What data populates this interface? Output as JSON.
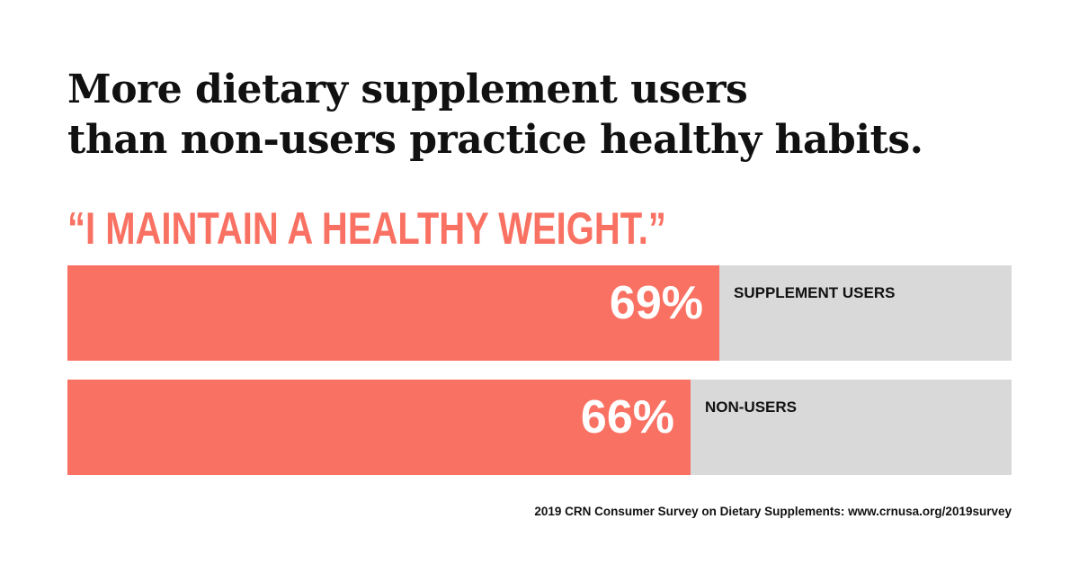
{
  "headline": {
    "line1": "More dietary supplement users",
    "line2": "than non-users practice healthy habits."
  },
  "quote": "“I MAINTAIN A HEALTHY WEIGHT.”",
  "chart_data": {
    "type": "bar",
    "orientation": "horizontal",
    "title": "“I MAINTAIN A HEALTHY WEIGHT.”",
    "categories": [
      "SUPPLEMENT USERS",
      "NON-USERS"
    ],
    "values": [
      69,
      66
    ],
    "value_labels": [
      "69%",
      "66%"
    ],
    "unit": "%",
    "xlim": [
      0,
      100
    ],
    "grid": false,
    "legend": "none",
    "colors": {
      "fill": "#f97162",
      "track": "#d9d9d9"
    }
  },
  "source": "2019 CRN Consumer Survey on Dietary Supplements: www.crnusa.org/2019survey"
}
